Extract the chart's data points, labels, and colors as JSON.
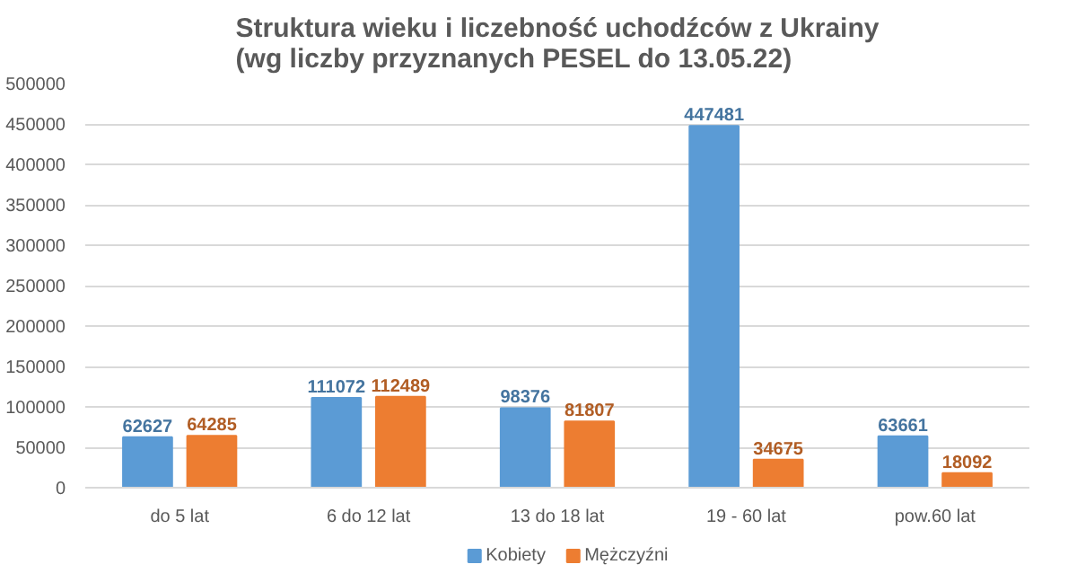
{
  "chart_data": {
    "type": "bar",
    "title": "Struktura wieku i liczebność uchodźców z Ukrainy\n(wg liczby przyznanych PESEL do 13.05.22)",
    "categories": [
      "do 5 lat",
      "6 do 12 lat",
      "13 do 18 lat",
      "19 - 60 lat",
      "pow.60 lat"
    ],
    "series": [
      {
        "name": "Kobiety",
        "color": "#5b9bd5",
        "values": [
          62627,
          111072,
          98376,
          447481,
          63661
        ]
      },
      {
        "name": "Mężczyźni",
        "color": "#ed7d31",
        "values": [
          64285,
          112489,
          81807,
          34675,
          18092
        ]
      }
    ],
    "ylim": [
      0,
      500000
    ],
    "yticks": [
      0,
      50000,
      100000,
      150000,
      200000,
      250000,
      300000,
      350000,
      400000,
      450000,
      500000
    ],
    "grid": "y",
    "legend": "bottom",
    "data_labels": true
  }
}
